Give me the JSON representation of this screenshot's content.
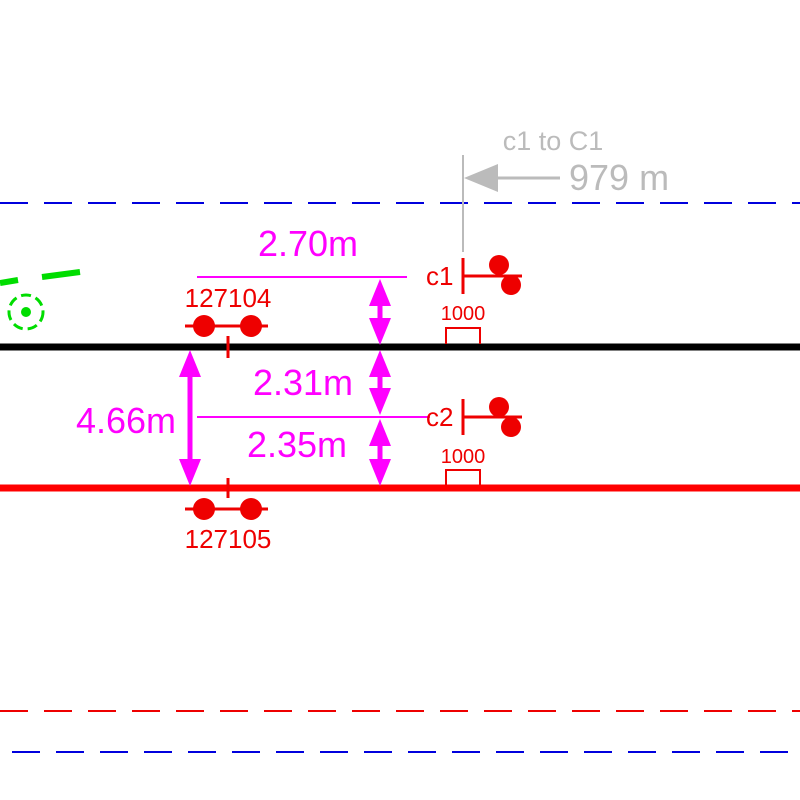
{
  "colors": {
    "dimension": "#ff00ff",
    "signal": "#ff0000",
    "reference": "#bbbbbb",
    "track_upper": "#000000",
    "track_lower": "#ff0000",
    "boundary_blue": "#0000dd",
    "boundary_red": "#ee0000",
    "green_marker": "#00dd00"
  },
  "reference": {
    "label": "c1 to C1",
    "distance": "979 m"
  },
  "dimensions": {
    "top_spacing": "2.70m",
    "mid_spacing": "2.31m",
    "lower_spacing": "2.35m",
    "total_spacing": "4.66m"
  },
  "points": {
    "upper_id": "127104",
    "lower_id": "127105"
  },
  "signals": {
    "c1_label": "c1",
    "c1_plate": "1000",
    "c2_label": "c2",
    "c2_plate": "1000"
  },
  "icons": {
    "signal": "signal-lamp-icon",
    "point": "point-marker-icon",
    "arrow": "arrow-left-icon",
    "target": "target-circle-icon"
  }
}
